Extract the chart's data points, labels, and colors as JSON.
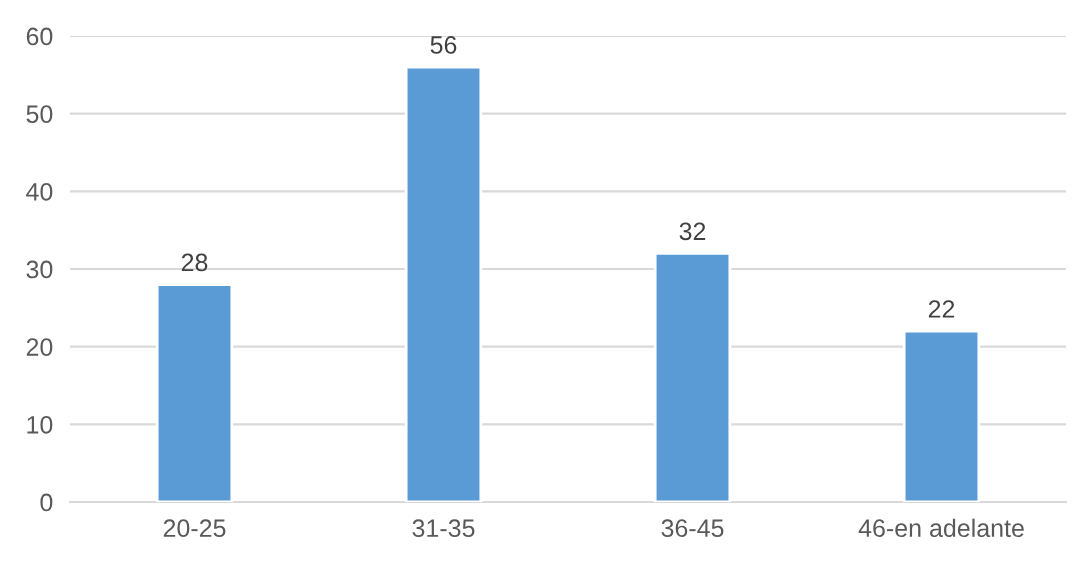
{
  "chart_data": {
    "type": "bar",
    "categories": [
      "20-25",
      "31-35",
      "36-45",
      "46-en adelante"
    ],
    "values": [
      28,
      56,
      32,
      22
    ],
    "color": "#5b9bd5",
    "ylim": [
      0,
      60
    ],
    "yticks": [
      0,
      10,
      20,
      30,
      40,
      50,
      60
    ],
    "grid": "y",
    "data_labels": true
  }
}
